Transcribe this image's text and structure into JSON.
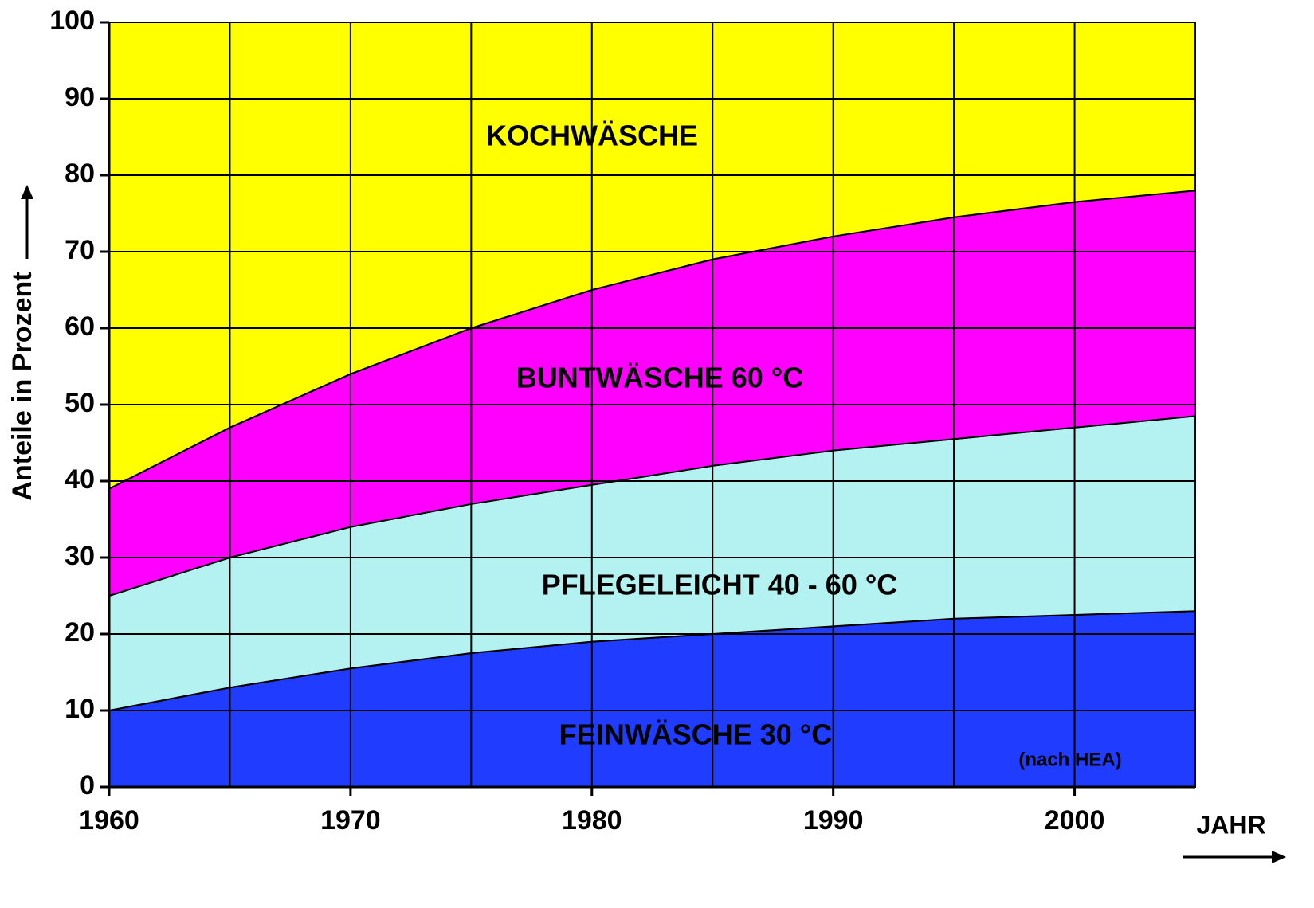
{
  "chart_data": {
    "type": "stacked_area",
    "x": [
      1960,
      1965,
      1970,
      1975,
      1980,
      1985,
      1990,
      1995,
      2000,
      2005
    ],
    "series": [
      {
        "name": "FEINWÄSCHE 30 °C",
        "color": "#1f3cff",
        "values": [
          10,
          13,
          15.5,
          17.5,
          19,
          20,
          21,
          22,
          22.5,
          23
        ]
      },
      {
        "name": "PFLEGELEICHT 40 - 60 °C",
        "color": "#b4f2f2",
        "values": [
          15,
          17,
          18.5,
          19.5,
          20.5,
          22,
          23,
          23.5,
          24.5,
          25.5
        ]
      },
      {
        "name": "BUNTWÄSCHE 60 °C",
        "color": "#ff00ff",
        "values": [
          14,
          17,
          20,
          23,
          25.5,
          27,
          28,
          29,
          29.5,
          29.5
        ]
      },
      {
        "name": "KOCHWÄSCHE",
        "color": "#ffff00",
        "values": [
          61,
          53,
          46,
          40,
          35,
          31,
          28,
          25.5,
          23.5,
          22
        ]
      }
    ],
    "xlabel": "JAHR",
    "ylabel": "Anteile in Prozent",
    "annotation": "(nach HEA)",
    "xlim": [
      1960,
      2005
    ],
    "xticks": [
      1960,
      1970,
      1980,
      1990,
      2000
    ],
    "ylim": [
      0,
      100
    ],
    "yticks": [
      0,
      10,
      20,
      30,
      40,
      50,
      60,
      70,
      80,
      90,
      100
    ],
    "grid": true
  }
}
